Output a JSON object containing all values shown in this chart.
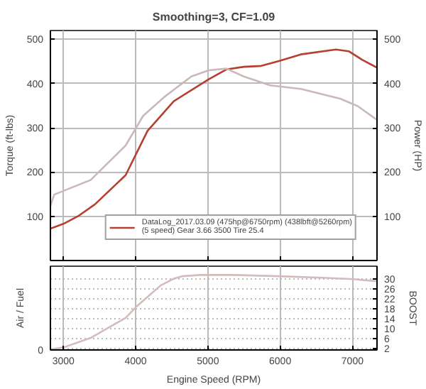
{
  "chart_data": [
    {
      "type": "line",
      "title": "Smoothing=3, CF=1.09",
      "ylabel": "Torque (ft-lbs)",
      "y2label": "Power (HP)",
      "xlim": [
        2820,
        7340
      ],
      "xticks": [
        3000,
        4000,
        5000,
        6000,
        7000
      ],
      "ylim": [
        0,
        520
      ],
      "yticks": [
        100,
        200,
        300,
        400,
        500
      ],
      "y2lim": [
        0,
        520
      ],
      "y2ticks": [
        100,
        200,
        300,
        400,
        500
      ],
      "tick_labels": "y",
      "grid": true,
      "legend": "bottom right",
      "series": [
        {
          "name": "DataLog_2017.03.09 (475hp@6750rpm) (438lbft@5260rpm)\n(5 speed) Gear 3.66 3500 Tire 25.4",
          "color": "#b5402f",
          "axis": "y2",
          "x": [
            2820,
            3000,
            3200,
            3436,
            3861,
            4164,
            4527,
            5012,
            5255,
            5497,
            5739,
            5982,
            6285,
            6770,
            6952,
            7133,
            7340
          ],
          "values": [
            72,
            83,
            100,
            127,
            193,
            293,
            360,
            410,
            432,
            438,
            440,
            451,
            466,
            477,
            473,
            454,
            436
          ]
        },
        {
          "color": "#cbb9b9",
          "x": [
            2820,
            2873,
            3376,
            3861,
            4103,
            4406,
            4770,
            5012,
            5255,
            5497,
            5861,
            6285,
            6830,
            7073,
            7340
          ],
          "values": [
            124,
            149,
            182,
            260,
            327,
            371,
            416,
            430,
            434,
            416,
            396,
            388,
            366,
            349,
            318
          ]
        }
      ]
    },
    {
      "type": "line",
      "xlabel": "Engine Speed (RPM)",
      "ylabel": "Air / Fuel",
      "y2label": "BOOST",
      "annotations": [
        "0"
      ],
      "xlim": [
        2820,
        7340
      ],
      "xticks": [
        3000,
        4000,
        5000,
        6000,
        7000
      ],
      "y2lim": [
        1.5,
        35
      ],
      "y2ticks": [
        2,
        6,
        10,
        14,
        18,
        22,
        26,
        30
      ],
      "grid": true,
      "series": [
        {
          "color": "#d4bcbc",
          "axis": "y2",
          "x": [
            2820,
            3012,
            3376,
            3679,
            3861,
            4012,
            4164,
            4345,
            4527,
            4648,
            4891,
            5376,
            5982,
            6588,
            7012,
            7340
          ],
          "values": [
            1.7,
            2.6,
            6.3,
            11.3,
            14.3,
            18.9,
            22.7,
            27.3,
            30,
            31,
            31.5,
            31.5,
            31,
            30.4,
            29.8,
            29
          ]
        }
      ]
    }
  ]
}
